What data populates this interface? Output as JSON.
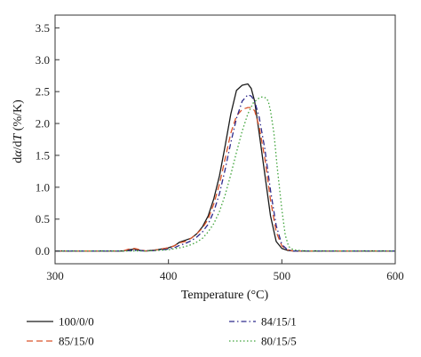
{
  "chart_data": {
    "type": "line",
    "xlabel": "Temperature (°C)",
    "ylabel_parts": {
      "d1": "d",
      "alpha": "α",
      "mid": "/d",
      "t": "T",
      "unit": " (%/K)"
    },
    "xlim": [
      300,
      600
    ],
    "ylim": [
      -0.2,
      3.7
    ],
    "x_ticks": [
      300,
      400,
      500,
      600
    ],
    "y_ticks": [
      0.0,
      0.5,
      1.0,
      1.5,
      2.0,
      2.5,
      3.0,
      3.5
    ],
    "x_tick_labels": [
      "300",
      "400",
      "500",
      "600"
    ],
    "y_tick_labels": [
      "0.0",
      "0.5",
      "1.0",
      "1.5",
      "2.0",
      "2.5",
      "3.0",
      "3.5"
    ],
    "grid": false,
    "legend_position": "bottom",
    "series": [
      {
        "name": "100/0/0",
        "color": "#1a1a1a",
        "dash": "solid",
        "x": [
          300,
          360,
          365,
          370,
          375,
          380,
          390,
          400,
          405,
          410,
          415,
          420,
          425,
          430,
          435,
          440,
          445,
          450,
          455,
          460,
          465,
          470,
          473,
          476,
          480,
          485,
          490,
          495,
          500,
          505,
          510,
          520,
          600
        ],
        "y": [
          0,
          0,
          0.02,
          0.03,
          0.01,
          0,
          0.02,
          0.05,
          0.08,
          0.14,
          0.17,
          0.2,
          0.27,
          0.38,
          0.55,
          0.82,
          1.18,
          1.65,
          2.15,
          2.52,
          2.6,
          2.62,
          2.55,
          2.35,
          1.85,
          1.2,
          0.55,
          0.15,
          0.04,
          0.01,
          0,
          0,
          0
        ]
      },
      {
        "name": "85/15/0",
        "color": "#d9532b",
        "dash": "dashed",
        "x": [
          300,
          360,
          365,
          370,
          375,
          380,
          390,
          400,
          405,
          410,
          415,
          420,
          425,
          430,
          435,
          440,
          445,
          450,
          455,
          460,
          465,
          470,
          473,
          476,
          480,
          485,
          490,
          495,
          500,
          505,
          510,
          520,
          600
        ],
        "y": [
          0,
          0,
          0.03,
          0.04,
          0.02,
          0,
          0.02,
          0.05,
          0.08,
          0.13,
          0.15,
          0.2,
          0.27,
          0.36,
          0.5,
          0.74,
          1.05,
          1.45,
          1.85,
          2.12,
          2.22,
          2.25,
          2.25,
          2.2,
          1.95,
          1.45,
          0.8,
          0.3,
          0.08,
          0.02,
          0,
          0,
          0
        ]
      },
      {
        "name": "84/15/1",
        "color": "#2e2a8c",
        "dash": "dashdot",
        "x": [
          300,
          360,
          370,
          380,
          390,
          400,
          405,
          410,
          415,
          420,
          425,
          430,
          435,
          440,
          445,
          450,
          455,
          460,
          465,
          470,
          473,
          476,
          480,
          485,
          490,
          495,
          500,
          505,
          510,
          520,
          600
        ],
        "y": [
          0,
          0,
          0.01,
          0,
          0.01,
          0.03,
          0.05,
          0.09,
          0.12,
          0.16,
          0.22,
          0.3,
          0.42,
          0.62,
          0.9,
          1.28,
          1.7,
          2.08,
          2.35,
          2.45,
          2.43,
          2.35,
          2.1,
          1.6,
          0.95,
          0.4,
          0.1,
          0.02,
          0,
          0,
          0
        ]
      },
      {
        "name": "80/15/5",
        "color": "#3fa33a",
        "dash": "dotted",
        "x": [
          300,
          370,
          380,
          390,
          400,
          410,
          415,
          420,
          425,
          430,
          435,
          440,
          445,
          450,
          455,
          460,
          465,
          470,
          475,
          480,
          483,
          486,
          488,
          490,
          493,
          496,
          500,
          503,
          506,
          510,
          520,
          600
        ],
        "y": [
          0,
          0,
          0,
          0.01,
          0.02,
          0.05,
          0.07,
          0.1,
          0.14,
          0.2,
          0.3,
          0.43,
          0.62,
          0.88,
          1.2,
          1.55,
          1.88,
          2.15,
          2.33,
          2.4,
          2.42,
          2.4,
          2.35,
          2.2,
          1.85,
          1.3,
          0.65,
          0.25,
          0.07,
          0.02,
          0,
          0
        ]
      }
    ]
  }
}
